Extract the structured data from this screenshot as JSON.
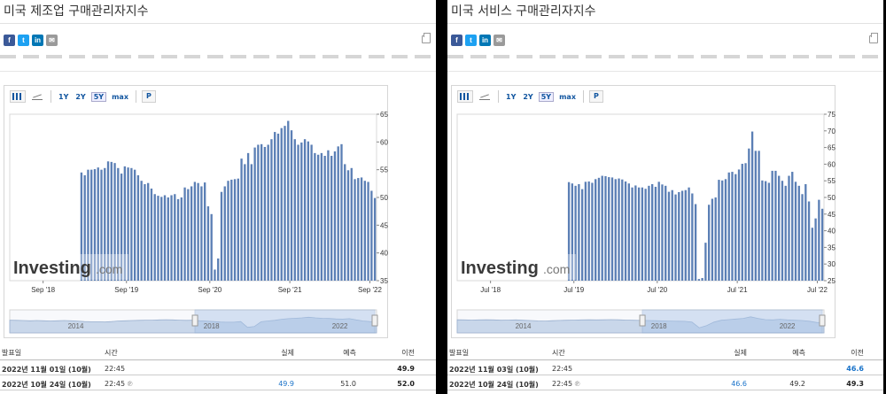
{
  "panels": [
    {
      "title": "미국 제조업 구매관리자지수",
      "toolbar": {
        "range_1y": "1Y",
        "range_2y": "2Y",
        "range_5y": "5Y",
        "range_max": "max",
        "p": "P"
      },
      "watermark": {
        "main": "Investing",
        "suffix": ".com"
      },
      "navigator_years": [
        "2014",
        "2018",
        "2022"
      ],
      "table": {
        "headers": {
          "date": "발표일",
          "time": "시간",
          "actual": "실제",
          "forecast": "예측",
          "previous": "이전"
        },
        "rows": [
          {
            "date": "2022년 11월 01일 (10월)",
            "time": "22:45",
            "actual": "",
            "forecast": "",
            "previous": "49.9",
            "previous_color": "#222222"
          },
          {
            "date": "2022년 10월 24일 (10월)",
            "time": "22:45",
            "actual": "49.9",
            "forecast": "51.0",
            "previous": "52.0",
            "previous_color": "#222222"
          }
        ],
        "p_mark": "℗"
      },
      "chart_data": {
        "type": "bar",
        "ylim": [
          35,
          65
        ],
        "yticks": [
          35,
          40,
          45,
          50,
          55,
          60,
          65
        ],
        "x_tick_labels": [
          "Sep '18",
          "Sep '19",
          "Sep '20",
          "Sep '21",
          "Sep '22"
        ],
        "x_tick_index": [
          10,
          35,
          60,
          84,
          108
        ],
        "bar_color": "#5b7fb5",
        "values": [
          54.5,
          54.0,
          55.0,
          55.0,
          55.1,
          55.4,
          55.0,
          55.3,
          56.5,
          56.4,
          56.2,
          55.3,
          54.3,
          55.6,
          55.4,
          55.3,
          55.0,
          54.0,
          53.0,
          52.4,
          52.6,
          51.6,
          50.6,
          50.3,
          50.1,
          50.4,
          50.0,
          50.4,
          50.6,
          49.7,
          50.0,
          51.8,
          51.5,
          52.0,
          52.8,
          52.6,
          52.0,
          52.7,
          48.4,
          47.0,
          37.0,
          39.0,
          51.0,
          52.0,
          53.0,
          53.2,
          53.3,
          53.4,
          57.0,
          56.0,
          58.0,
          56.0,
          59.0,
          59.5,
          59.6,
          59.1,
          59.5,
          60.5,
          61.8,
          61.5,
          62.5,
          62.9,
          63.8,
          62.1,
          60.5,
          59.5,
          59.9,
          60.5,
          60.1,
          59.5,
          58.0,
          57.7,
          58.0,
          57.5,
          58.5,
          57.5,
          58.3,
          59.2,
          59.6,
          56.0,
          54.9,
          55.3,
          53.3,
          53.5,
          53.6,
          53.0,
          52.8,
          51.2,
          49.9
        ]
      },
      "navigator_values": [
        55.5,
        55.0,
        54.5,
        54.0,
        54.5,
        54.0,
        53.5,
        54.0,
        54.5,
        54.0,
        53.0,
        52.0,
        51.5,
        51.5,
        51.0,
        52.0,
        53.5,
        54.0,
        54.5,
        55.0,
        55.5,
        55.5,
        56.0,
        56.5,
        56.0,
        55.5,
        55.0,
        55.5,
        54.0,
        53.0,
        52.0,
        51.0,
        50.5,
        50.5,
        52.0,
        38.0,
        40.0,
        51.5,
        53.5,
        55.0,
        57.5,
        59.0,
        60.0,
        61.0,
        62.5,
        61.0,
        60.0,
        59.5,
        58.5,
        58.0,
        59.0,
        56.0,
        53.5,
        52.0,
        51.0
      ]
    },
    {
      "title": "미국 서비스 구매관리자지수",
      "toolbar": {
        "range_1y": "1Y",
        "range_2y": "2Y",
        "range_5y": "5Y",
        "range_max": "max",
        "p": "P"
      },
      "watermark": {
        "main": "Investing",
        "suffix": ".com"
      },
      "navigator_years": [
        "2014",
        "2018",
        "2022"
      ],
      "table": {
        "headers": {
          "date": "발표일",
          "time": "시간",
          "actual": "실제",
          "forecast": "예측",
          "previous": "이전"
        },
        "rows": [
          {
            "date": "2022년 11월 03일 (10월)",
            "time": "22:45",
            "actual": "",
            "forecast": "",
            "previous": "46.6",
            "previous_color": "#1a73c9"
          },
          {
            "date": "2022년 10월 24일 (10월)",
            "time": "22:45",
            "actual": "46.6",
            "forecast": "49.2",
            "previous": "49.3",
            "previous_color": "#222222"
          }
        ],
        "p_mark": "℗"
      },
      "chart_data": {
        "type": "bar",
        "ylim": [
          25,
          75
        ],
        "yticks": [
          25,
          30,
          35,
          40,
          45,
          50,
          55,
          60,
          65,
          70,
          75
        ],
        "x_tick_labels": [
          "Jul '18",
          "Jul '19",
          "Jul '20",
          "Jul '21",
          "Jul '22"
        ],
        "x_tick_index": [
          10,
          35,
          60,
          84,
          108
        ],
        "bar_color": "#5b7fb5",
        "values": [
          54.6,
          54.2,
          53.5,
          54.0,
          52.5,
          54.7,
          54.8,
          54.4,
          55.5,
          55.9,
          56.5,
          56.4,
          56.1,
          56.0,
          55.5,
          55.7,
          55.4,
          54.8,
          54.2,
          53.0,
          53.6,
          53.0,
          53.0,
          52.6,
          53.5,
          54.0,
          53.2,
          54.7,
          53.9,
          53.5,
          51.7,
          52.2,
          50.9,
          51.6,
          52.0,
          52.2,
          53.0,
          51.2,
          48.0,
          25.5,
          25.8,
          36.4,
          47.8,
          49.6,
          50.0,
          55.3,
          55.1,
          55.5,
          57.5,
          57.7,
          57.0,
          58.4,
          60.1,
          60.3,
          64.7,
          69.8,
          64.0,
          64.0,
          55.1,
          54.9,
          54.4,
          58.0,
          58.0,
          56.5,
          55.0,
          53.5,
          56.5,
          57.7,
          54.7,
          53.5,
          51.0,
          54.0,
          48.8,
          40.9,
          43.7,
          49.3,
          46.6
        ]
      },
      "navigator_values": [
        55.5,
        55.0,
        54.5,
        55.0,
        55.5,
        55.0,
        54.0,
        54.5,
        55.0,
        54.0,
        53.0,
        52.0,
        51.5,
        52.5,
        53.5,
        54.0,
        54.5,
        55.0,
        55.5,
        55.0,
        55.5,
        56.0,
        55.5,
        54.5,
        54.0,
        53.5,
        53.0,
        52.5,
        52.0,
        51.5,
        51.0,
        50.5,
        48.0,
        30.0,
        37.0,
        48.0,
        54.0,
        56.0,
        58.0,
        60.0,
        65.0,
        60.0,
        56.0,
        55.0,
        57.0,
        55.0,
        54.0,
        53.0,
        51.0,
        47.0,
        46.6
      ]
    }
  ]
}
